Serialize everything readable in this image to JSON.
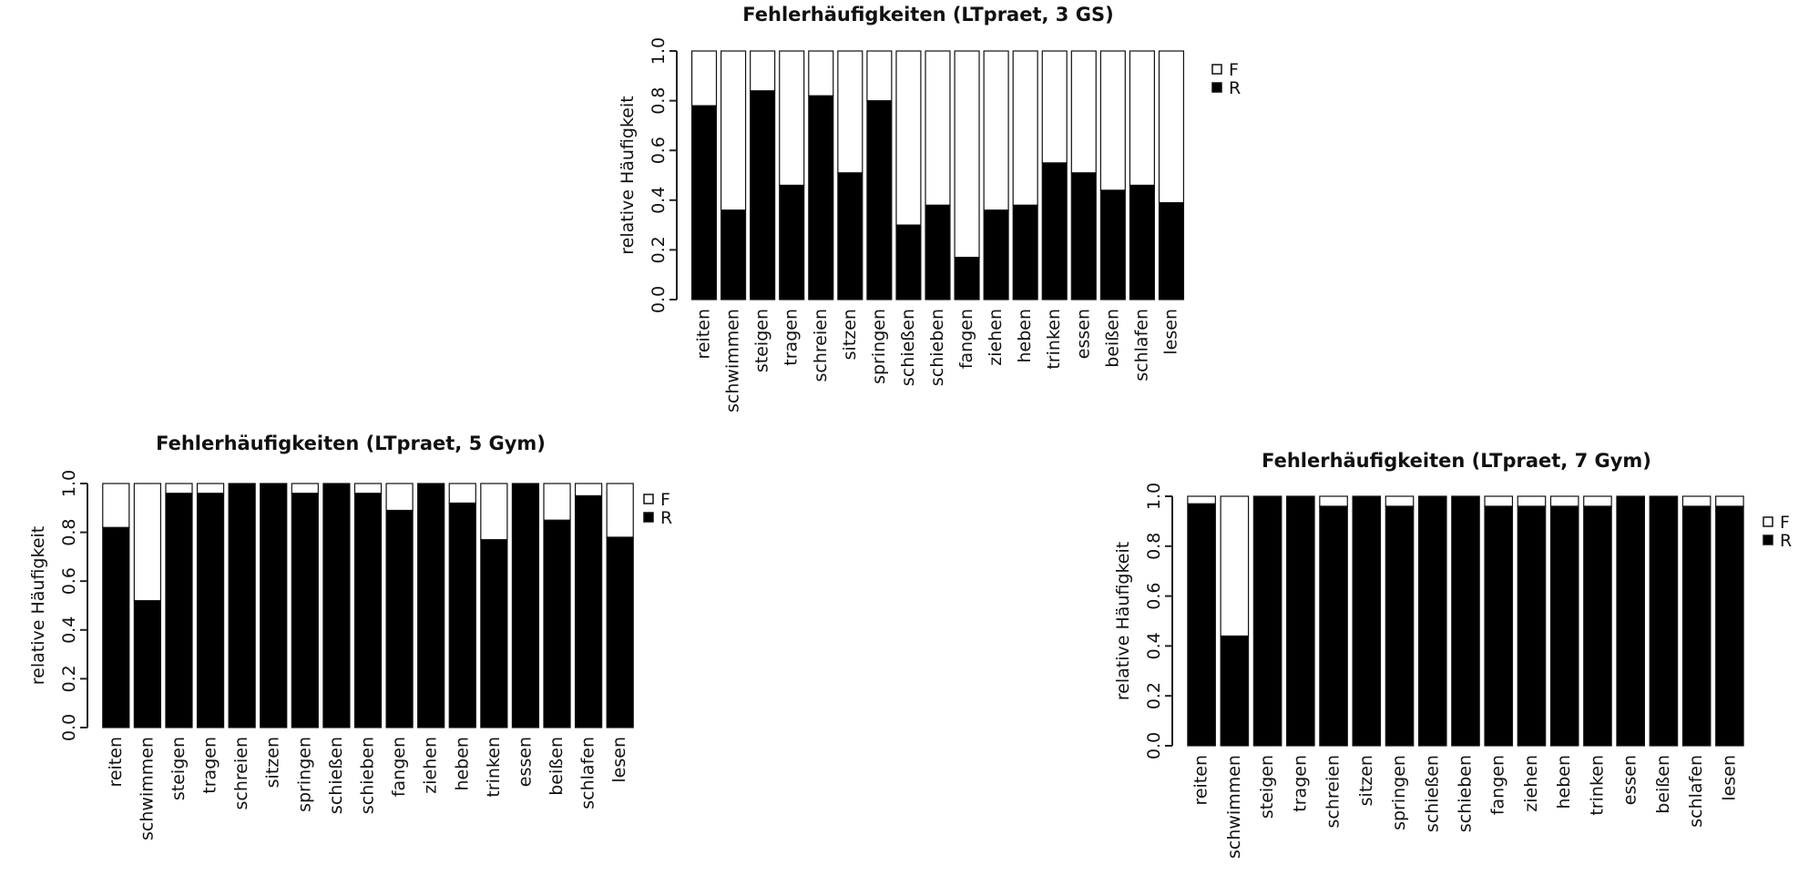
{
  "chart_data": [
    {
      "type": "stacked_bar",
      "title": "Fehlerhäufigkeiten (LTpraet, 3 GS)",
      "y_label": "relative Häufigkeit",
      "categories": [
        "reiten",
        "schwimmen",
        "steigen",
        "tragen",
        "schreien",
        "sitzen",
        "springen",
        "schießen",
        "schieben",
        "fangen",
        "ziehen",
        "heben",
        "trinken",
        "essen",
        "beißen",
        "schlafen",
        "lesen"
      ],
      "series": [
        {
          "name": "F",
          "color": "#ffffff",
          "values": [
            0.22,
            0.64,
            0.16,
            0.54,
            0.18,
            0.49,
            0.2,
            0.7,
            0.62,
            0.83,
            0.64,
            0.62,
            0.45,
            0.49,
            0.56,
            0.54,
            0.61
          ]
        },
        {
          "name": "R",
          "color": "#000000",
          "values": [
            0.78,
            0.36,
            0.84,
            0.46,
            0.82,
            0.51,
            0.8,
            0.3,
            0.38,
            0.17,
            0.36,
            0.38,
            0.55,
            0.51,
            0.44,
            0.46,
            0.39
          ]
        }
      ],
      "ylim": [
        0,
        1
      ],
      "yticks": [
        {
          "value": 0,
          "label": "0.0"
        },
        {
          "value": 0.2,
          "label": "0.2"
        },
        {
          "value": 0.4,
          "label": "0.4"
        },
        {
          "value": 0.6,
          "label": "0.6"
        },
        {
          "value": 0.8,
          "label": "0.8"
        },
        {
          "value": 1,
          "label": "1.0"
        }
      ]
    },
    {
      "type": "stacked_bar",
      "title": "Fehlerhäufigkeiten (LTpraet, 5 Gym)",
      "y_label": "relative Häufigkeit",
      "categories": [
        "reiten",
        "schwimmen",
        "steigen",
        "tragen",
        "schreien",
        "sitzen",
        "springen",
        "schießen",
        "schieben",
        "fangen",
        "ziehen",
        "heben",
        "trinken",
        "essen",
        "beißen",
        "schlafen",
        "lesen"
      ],
      "series": [
        {
          "name": "F",
          "color": "#ffffff",
          "values": [
            0.18,
            0.48,
            0.04,
            0.04,
            0,
            0,
            0.04,
            0,
            0.04,
            0.11,
            0,
            0.08,
            0.23,
            0,
            0.15,
            0.05,
            0.22
          ]
        },
        {
          "name": "R",
          "color": "#000000",
          "values": [
            0.82,
            0.52,
            0.96,
            0.96,
            1,
            1,
            0.96,
            1,
            0.96,
            0.89,
            1,
            0.92,
            0.77,
            1,
            0.85,
            0.95,
            0.78
          ]
        }
      ],
      "ylim": [
        0,
        1
      ],
      "yticks": [
        {
          "value": 0,
          "label": "0.0"
        },
        {
          "value": 0.2,
          "label": "0.2"
        },
        {
          "value": 0.4,
          "label": "0.4"
        },
        {
          "value": 0.6,
          "label": "0.6"
        },
        {
          "value": 0.8,
          "label": "0.8"
        },
        {
          "value": 1,
          "label": "1.0"
        }
      ]
    },
    {
      "type": "stacked_bar",
      "title": "Fehlerhäufigkeiten (LTpraet, 7 Gym)",
      "y_label": "relative Häufigkeit",
      "categories": [
        "reiten",
        "schwimmen",
        "steigen",
        "tragen",
        "schreien",
        "sitzen",
        "springen",
        "schießen",
        "schieben",
        "fangen",
        "ziehen",
        "heben",
        "trinken",
        "essen",
        "beißen",
        "schlafen",
        "lesen"
      ],
      "series": [
        {
          "name": "F",
          "color": "#ffffff",
          "values": [
            0.03,
            0.56,
            0,
            0,
            0.04,
            0,
            0.04,
            0,
            0,
            0.04,
            0.04,
            0.04,
            0.04,
            0,
            0,
            0.04,
            0.04
          ]
        },
        {
          "name": "R",
          "color": "#000000",
          "values": [
            0.97,
            0.44,
            1,
            1,
            0.96,
            1,
            0.96,
            1,
            1,
            0.96,
            0.96,
            0.96,
            0.96,
            1,
            1,
            0.96,
            0.96
          ]
        }
      ],
      "ylim": [
        0,
        1
      ],
      "yticks": [
        {
          "value": 0,
          "label": "0.0"
        },
        {
          "value": 0.2,
          "label": "0.2"
        },
        {
          "value": 0.4,
          "label": "0.4"
        },
        {
          "value": 0.6,
          "label": "0.6"
        },
        {
          "value": 0.8,
          "label": "0.8"
        },
        {
          "value": 1,
          "label": "1.0"
        }
      ]
    }
  ]
}
